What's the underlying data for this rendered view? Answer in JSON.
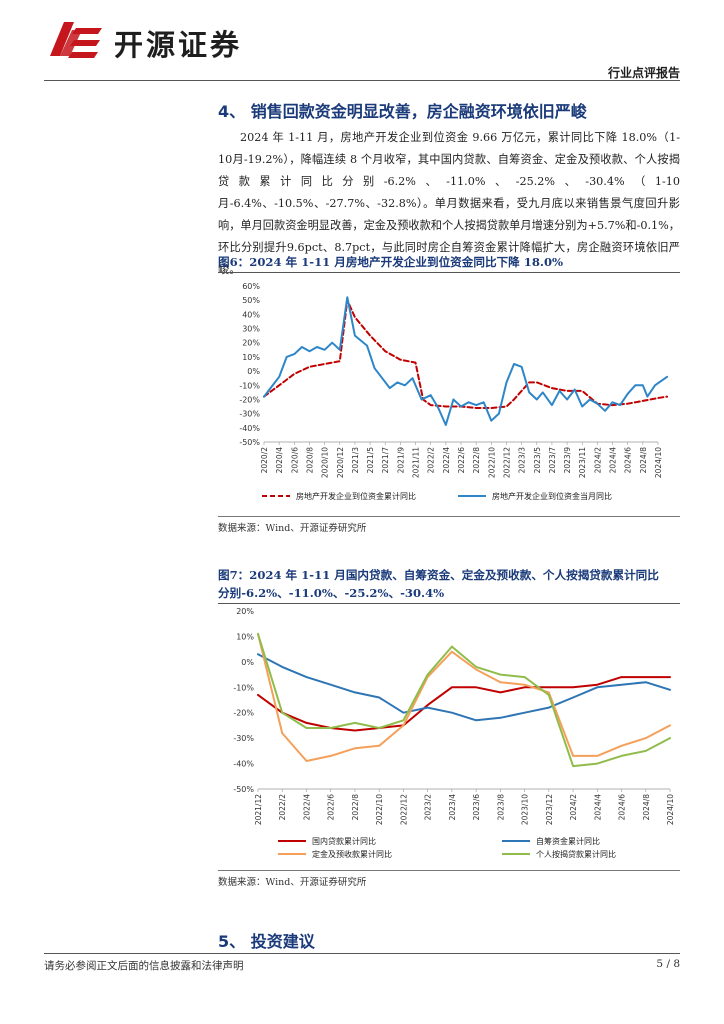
{
  "header": {
    "brand": "开源证券",
    "report_type": "行业点评报告"
  },
  "section4": {
    "title": "4、 销售回款资金明显改善，房企融资环境依旧严峻",
    "paragraph": "2024 年 1-11 月，房地产开发企业到位资金 9.66 万亿元，累计同比下降 18.0%（1-10月-19.2%），降幅连续 8 个月收窄，其中国内贷款、自筹资金、定金及预收款、个人按揭贷款累计同比分别-6.2%、-11.0%、-25.2%、-30.4%（1-10月-6.4%、-10.5%、-27.7%、-32.8%）。单月数据来看，受九月底以来销售景气度回升影响，单月回款资金明显改善，定金及预收款和个人按揭贷款单月增速分别为+5.7%和-0.1%，环比分别提升9.6pct、8.7pct，与此同时房企自筹资金累计降幅扩大，房企融资环境依旧严峻。"
  },
  "figure6": {
    "title": "图6：2024 年 1-11 月房地产开发企业到位资金同比下降 18.0%",
    "source": "数据来源：Wind、开源证券研究所"
  },
  "figure7": {
    "title_line1": "图7：2024 年 1-11 月国内贷款、自筹资金、定金及预收款、个人按揭贷款累计同比",
    "title_line2": "分别-6.2%、-11.0%、-25.2%、-30.4%",
    "source": "数据来源：Wind、开源证券研究所"
  },
  "section5": {
    "title": "5、 投资建议"
  },
  "footer": {
    "disclaimer": "请务必参阅正文后面的信息披露和法律声明",
    "page": "5 / 8"
  },
  "chart_data": [
    {
      "type": "line",
      "title": "图6：2024 年 1-11 月房地产开发企业到位资金同比下降 18.0%",
      "x_labels": [
        "2020/2",
        "2020/4",
        "2020/6",
        "2020/8",
        "2020/10",
        "2020/12",
        "2021/3",
        "2021/5",
        "2021/7",
        "2021/9",
        "2021/11",
        "2022/2",
        "2022/4",
        "2022/6",
        "2022/8",
        "2022/10",
        "2022/12",
        "2023/3",
        "2023/5",
        "2023/7",
        "2023/9",
        "2023/11",
        "2024/2",
        "2024/4",
        "2024/6",
        "2024/8",
        "2024/10"
      ],
      "y_ticks": [
        "60%",
        "50%",
        "40%",
        "30%",
        "20%",
        "10%",
        "0%",
        "-10%",
        "-20%",
        "-30%",
        "-40%",
        "-50%"
      ],
      "ylim": [
        -50,
        60
      ],
      "series": [
        {
          "name": "房地产开发企业到位资金累计同比",
          "color": "#c00000",
          "style": "dashed",
          "points": [
            [
              0,
              -18
            ],
            [
              1,
              -10
            ],
            [
              2,
              -2
            ],
            [
              3,
              3
            ],
            [
              4,
              5
            ],
            [
              5,
              7
            ],
            [
              5.5,
              50
            ],
            [
              6,
              38
            ],
            [
              7,
              25
            ],
            [
              8,
              14
            ],
            [
              9,
              8
            ],
            [
              10,
              6
            ],
            [
              10.5,
              -20
            ],
            [
              11,
              -24
            ],
            [
              12,
              -25
            ],
            [
              13,
              -25
            ],
            [
              14,
              -26
            ],
            [
              15,
              -26
            ],
            [
              16,
              -25
            ],
            [
              16.5,
              -20
            ],
            [
              17,
              -14
            ],
            [
              17.5,
              -8
            ],
            [
              18,
              -8
            ],
            [
              19,
              -12
            ],
            [
              20,
              -14
            ],
            [
              21,
              -14
            ],
            [
              22,
              -23
            ],
            [
              23,
              -24
            ],
            [
              24,
              -23
            ],
            [
              25,
              -21
            ],
            [
              26,
              -19
            ],
            [
              26.6,
              -18
            ]
          ]
        },
        {
          "name": "房地产开发企业到位资金当月同比",
          "color": "#2e86c8",
          "style": "solid",
          "points": [
            [
              0,
              -18
            ],
            [
              1,
              -4
            ],
            [
              1.5,
              10
            ],
            [
              2,
              12
            ],
            [
              2.5,
              17
            ],
            [
              3,
              14
            ],
            [
              3.5,
              17
            ],
            [
              4,
              15
            ],
            [
              4.5,
              20
            ],
            [
              5,
              15
            ],
            [
              5.5,
              52
            ],
            [
              6,
              25
            ],
            [
              6.8,
              18
            ],
            [
              7.3,
              2
            ],
            [
              7.8,
              -5
            ],
            [
              8.3,
              -12
            ],
            [
              8.8,
              -8
            ],
            [
              9.3,
              -10
            ],
            [
              9.8,
              -5
            ],
            [
              10.4,
              -20
            ],
            [
              11,
              -17
            ],
            [
              11.5,
              -26
            ],
            [
              12,
              -38
            ],
            [
              12.5,
              -20
            ],
            [
              13,
              -25
            ],
            [
              13.5,
              -22
            ],
            [
              14,
              -24
            ],
            [
              14.5,
              -22
            ],
            [
              15,
              -35
            ],
            [
              15.5,
              -30
            ],
            [
              16,
              -8
            ],
            [
              16.5,
              5
            ],
            [
              17,
              3
            ],
            [
              17.5,
              -15
            ],
            [
              18,
              -20
            ],
            [
              18.4,
              -15
            ],
            [
              19,
              -24
            ],
            [
              19.5,
              -14
            ],
            [
              20,
              -20
            ],
            [
              20.5,
              -13
            ],
            [
              21,
              -25
            ],
            [
              21.5,
              -20
            ],
            [
              22,
              -23
            ],
            [
              22.5,
              -28
            ],
            [
              23,
              -22
            ],
            [
              23.5,
              -24
            ],
            [
              24,
              -16
            ],
            [
              24.5,
              -10
            ],
            [
              25,
              -10
            ],
            [
              25.3,
              -18
            ],
            [
              25.8,
              -10
            ],
            [
              26.6,
              -4
            ]
          ]
        }
      ],
      "legend": "bottom"
    },
    {
      "type": "line",
      "title": "图7：2024 年 1-11 月国内贷款、自筹资金、定金及预收款、个人按揭贷款累计同比分别-6.2%、-11.0%、-25.2%、-30.4%",
      "x_labels": [
        "2021/12",
        "2022/2",
        "2022/4",
        "2022/6",
        "2022/8",
        "2022/10",
        "2022/12",
        "2023/2",
        "2023/4",
        "2023/6",
        "2023/8",
        "2023/10",
        "2023/12",
        "2024/2",
        "2024/4",
        "2024/6",
        "2024/8",
        "2024/10"
      ],
      "y_ticks": [
        "20%",
        "10%",
        "0%",
        "-10%",
        "-20%",
        "-30%",
        "-40%",
        "-50%"
      ],
      "ylim": [
        -50,
        20
      ],
      "series": [
        {
          "name": "国内贷款累计同比",
          "color": "#c00000",
          "points": [
            [
              0,
              -13
            ],
            [
              1,
              -20
            ],
            [
              2,
              -24
            ],
            [
              3,
              -26
            ],
            [
              4,
              -27
            ],
            [
              5,
              -26
            ],
            [
              6,
              -25
            ],
            [
              7,
              -17
            ],
            [
              8,
              -10
            ],
            [
              9,
              -10
            ],
            [
              10,
              -12
            ],
            [
              11,
              -10
            ],
            [
              12,
              -10
            ],
            [
              13,
              -10
            ],
            [
              14,
              -9
            ],
            [
              15,
              -6
            ],
            [
              16,
              -6
            ],
            [
              17,
              -6
            ]
          ]
        },
        {
          "name": "自筹资金累计同比",
          "color": "#2e75b6",
          "points": [
            [
              0,
              3
            ],
            [
              1,
              -2
            ],
            [
              2,
              -6
            ],
            [
              3,
              -9
            ],
            [
              4,
              -12
            ],
            [
              5,
              -14
            ],
            [
              6,
              -20
            ],
            [
              7,
              -18
            ],
            [
              8,
              -20
            ],
            [
              9,
              -23
            ],
            [
              10,
              -22
            ],
            [
              11,
              -20
            ],
            [
              12,
              -18
            ],
            [
              13,
              -14
            ],
            [
              14,
              -10
            ],
            [
              15,
              -9
            ],
            [
              16,
              -8
            ],
            [
              17,
              -11
            ]
          ]
        },
        {
          "name": "定金及预收款累计同比",
          "color": "#f4a05a",
          "points": [
            [
              0,
              11
            ],
            [
              1,
              -28
            ],
            [
              2,
              -39
            ],
            [
              3,
              -37
            ],
            [
              4,
              -34
            ],
            [
              5,
              -33
            ],
            [
              6,
              -25
            ],
            [
              7,
              -6
            ],
            [
              8,
              4
            ],
            [
              9,
              -3
            ],
            [
              10,
              -8
            ],
            [
              11,
              -9
            ],
            [
              12,
              -12
            ],
            [
              13,
              -37
            ],
            [
              14,
              -37
            ],
            [
              15,
              -33
            ],
            [
              16,
              -30
            ],
            [
              17,
              -25
            ]
          ]
        },
        {
          "name": "个人按揭贷款累计同比",
          "color": "#8fbc4a",
          "points": [
            [
              0,
              11
            ],
            [
              1,
              -20
            ],
            [
              2,
              -26
            ],
            [
              3,
              -26
            ],
            [
              4,
              -24
            ],
            [
              5,
              -26
            ],
            [
              6,
              -23
            ],
            [
              7,
              -5
            ],
            [
              8,
              6
            ],
            [
              9,
              -2
            ],
            [
              10,
              -5
            ],
            [
              11,
              -6
            ],
            [
              12,
              -13
            ],
            [
              13,
              -41
            ],
            [
              14,
              -40
            ],
            [
              15,
              -37
            ],
            [
              16,
              -35
            ],
            [
              17,
              -30
            ]
          ]
        }
      ],
      "legend": "bottom"
    }
  ]
}
